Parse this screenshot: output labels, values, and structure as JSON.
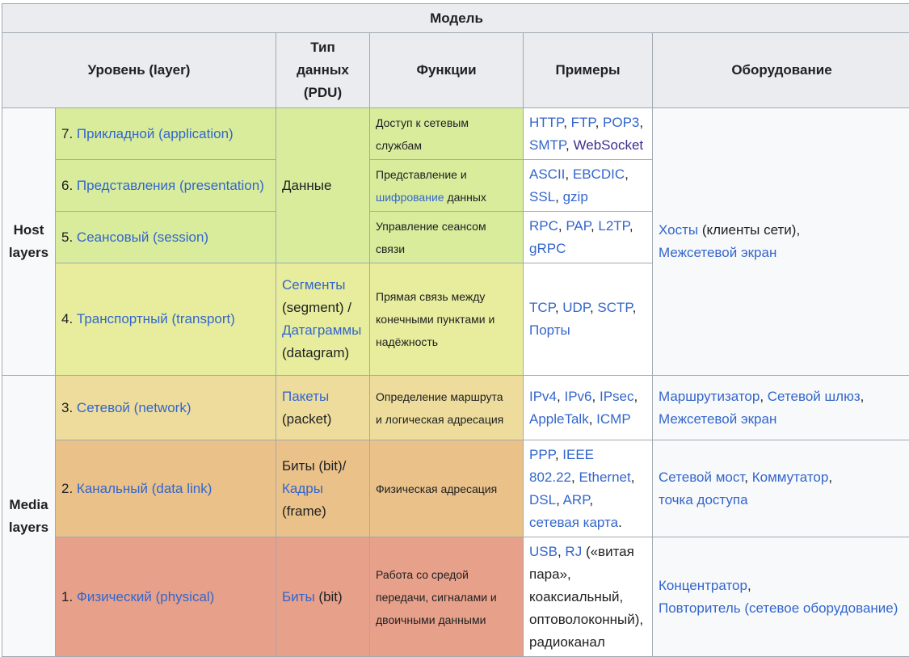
{
  "table": {
    "caption": "Модель",
    "headers": {
      "layer": "Уровень (layer)",
      "pdu_lines": [
        "Тип",
        "данных",
        "(PDU)"
      ],
      "functions": "Функции",
      "examples": "Примеры",
      "equipment": "Оборудование"
    },
    "groups": {
      "host_lines": [
        "Host",
        "layers"
      ],
      "media_lines": [
        "Media",
        "layers"
      ]
    },
    "colors": {
      "application": "#d8ec9c",
      "transport": "#e7ed9c",
      "network": "#eddc9c",
      "datalink": "#e9c189",
      "physical": "#e7a08a",
      "header": "#eaecf0",
      "link": "#3366cc"
    },
    "rows": {
      "application": {
        "num": "7.",
        "link": "Прикладной (application)",
        "func_lines": [
          "Доступ к сетевым",
          "службам"
        ],
        "ex": {
          "http": "HTTP",
          "ftp": "FTP",
          "pop3": "POP3",
          "smtp": "SMTP",
          "websocket": "WebSocket"
        }
      },
      "presentation": {
        "num": "6.",
        "link": "Представления (presentation)",
        "func_pre": "Представление и",
        "func_link": "шифрование",
        "func_post": "данных",
        "ex": {
          "ascii": "ASCII",
          "ebcdic": "EBCDIC",
          "ssl": "SSL",
          "gzip": "gzip"
        }
      },
      "session": {
        "num": "5.",
        "link": "Сеансовый (session)",
        "func_lines": [
          "Управление сеансом",
          "связи"
        ],
        "ex": {
          "rpc": "RPC",
          "pap": "PAP",
          "l2tp": "L2TP",
          "grpc": "gRPC"
        }
      },
      "transport": {
        "num": "4.",
        "link": "Транспортный (transport)",
        "pdu": {
          "segments": "Сегменты",
          "segments_en": "(segment) /",
          "datagrams": "Датаграммы",
          "datagrams_en": "(datagram)"
        },
        "func_lines": [
          "Прямая связь между",
          "конечными пунктами и",
          "надёжность"
        ],
        "ex": {
          "tcp": "TCP",
          "udp": "UDP",
          "sctp": "SCTP",
          "ports": "Порты"
        }
      },
      "network": {
        "num": "3.",
        "link": "Сетевой (network)",
        "pdu": {
          "packets": "Пакеты",
          "packets_en": "(packet)"
        },
        "func_lines": [
          "Определение маршрута",
          "и логическая адресация"
        ],
        "ex": {
          "ipv4": "IPv4",
          "ipv6": "IPv6",
          "ipsec": "IPsec",
          "appletalk": "AppleTalk",
          "icmp": "ICMP"
        },
        "equip": {
          "router": "Маршрутизатор",
          "gateway": "Сетевой шлюз",
          "firewall": "Межсетевой экран"
        }
      },
      "datalink": {
        "num": "2.",
        "link": "Канальный (data link)",
        "pdu": {
          "bits": "Биты (bit)/",
          "frames": "Кадры",
          "frames_en": "(frame)"
        },
        "func": "Физическая адресация",
        "ex": {
          "ppp": "PPP",
          "ieee": "IEEE",
          "ieee2": "802.22",
          "ethernet": "Ethernet",
          "dsl": "DSL",
          "arp": "ARP",
          "nic": "сетевая карта"
        },
        "equip": {
          "bridge": "Сетевой мост",
          "switch": "Коммутатор",
          "ap": "точка доступа"
        }
      },
      "physical": {
        "num": "1.",
        "link": "Физический (physical)",
        "pdu": {
          "bits": "Биты",
          "bits_en": "(bit)"
        },
        "func_lines": [
          "Работа со средой",
          "передачи, сигналами и",
          "двоичными данными"
        ],
        "ex": {
          "usb": "USB",
          "rj": "RJ",
          "rj_note": "(«витая",
          "rj_note2": "пара»,",
          "coax": "коаксиальный,",
          "fiber": "оптоволоконный),",
          "radio": "радиоканал"
        },
        "equip": {
          "hub": "Концентратор",
          "repeater": "Повторитель (сетевое оборудование)"
        }
      }
    },
    "host_equip": {
      "hosts": "Хосты",
      "hosts_note": "(клиенты сети),",
      "firewall": "Межсетевой экран"
    }
  }
}
